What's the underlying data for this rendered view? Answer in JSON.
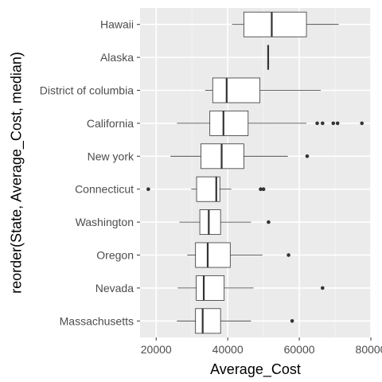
{
  "chart_data": {
    "type": "boxplot",
    "orientation": "horizontal",
    "xlabel": "Average_Cost",
    "ylabel": "reorder(State, Average_Cost, median)",
    "xlim": [
      15500,
      80000
    ],
    "x_ticks": [
      20000,
      40000,
      60000,
      80000
    ],
    "x_tick_labels": [
      "20000",
      "40000",
      "60000",
      "80000"
    ],
    "grid": true,
    "categories": [
      "Massachusetts",
      "Nevada",
      "Oregon",
      "Washington",
      "Connecticut",
      "New york",
      "California",
      "District of columbia",
      "Alaska",
      "Hawaii"
    ],
    "boxes": [
      {
        "category": "Massachusetts",
        "whisker_low": 25800,
        "q1": 31000,
        "median": 33000,
        "q3": 38000,
        "whisker_high": 46500,
        "outliers": [
          58000
        ]
      },
      {
        "category": "Nevada",
        "whisker_low": 26000,
        "q1": 31200,
        "median": 33300,
        "q3": 39000,
        "whisker_high": 47200,
        "outliers": [
          66500
        ]
      },
      {
        "category": "Oregon",
        "whisker_low": 28700,
        "q1": 31000,
        "median": 34400,
        "q3": 40700,
        "whisker_high": 49700,
        "outliers": [
          57000
        ]
      },
      {
        "category": "Washington",
        "whisker_low": 26500,
        "q1": 32200,
        "median": 34700,
        "q3": 38000,
        "whisker_high": 46500,
        "outliers": [
          51400
        ]
      },
      {
        "category": "Connecticut",
        "whisker_low": 29800,
        "q1": 31300,
        "median": 36800,
        "q3": 37800,
        "whisker_high": 41000,
        "outliers": [
          17800,
          49200,
          50000
        ]
      },
      {
        "category": "New york",
        "whisker_low": 24000,
        "q1": 32500,
        "median": 38300,
        "q3": 44500,
        "whisker_high": 56800,
        "outliers": [
          62200
        ]
      },
      {
        "category": "California",
        "whisker_low": 25800,
        "q1": 35000,
        "median": 38800,
        "q3": 45700,
        "whisker_high": 62000,
        "outliers": [
          65000,
          66500,
          69500,
          70700,
          77500
        ]
      },
      {
        "category": "District of columbia",
        "whisker_low": 33700,
        "q1": 35800,
        "median": 39700,
        "q3": 49000,
        "whisker_high": 66000,
        "outliers": []
      },
      {
        "category": "Alaska",
        "whisker_low": 51300,
        "q1": 51300,
        "median": 51300,
        "q3": 51300,
        "whisker_high": 51300,
        "outliers": []
      },
      {
        "category": "Hawaii",
        "whisker_low": 41200,
        "q1": 44500,
        "median": 52300,
        "q3": 62000,
        "whisker_high": 71000,
        "outliers": []
      }
    ]
  },
  "colors": {
    "panel_background": "#ebebeb",
    "grid_major": "#ffffff",
    "grid_minor": "#f5f5f5",
    "box_fill": "#ffffff",
    "box_stroke": "#333333",
    "outlier": "#333333",
    "tick_text": "#4d4d4d",
    "axis_title": "#000000"
  }
}
